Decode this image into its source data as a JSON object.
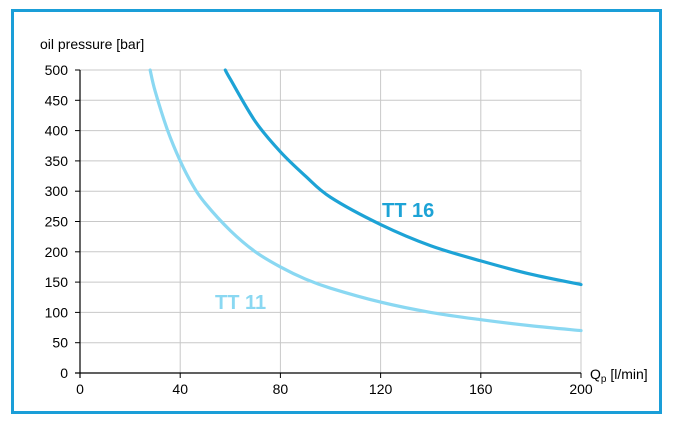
{
  "colors": {
    "frame": "#1a9ed8",
    "grid": "#c8c8c8",
    "axis": "#000000",
    "text": "#000000"
  },
  "chart_data": {
    "type": "line",
    "title": "",
    "ylabel": "oil pressure [bar]",
    "xlabel_main": "Q",
    "xlabel_sub": "p",
    "xlabel_unit": " [l/min]",
    "xlim": [
      0,
      200
    ],
    "ylim": [
      0,
      500
    ],
    "xticks": [
      0,
      40,
      80,
      120,
      160,
      200
    ],
    "yticks": [
      0,
      50,
      100,
      150,
      200,
      250,
      300,
      350,
      400,
      450,
      500
    ],
    "grid": true,
    "series": [
      {
        "name": "TT 11",
        "color": "#8ad8f2",
        "x": [
          28,
          30,
          35,
          40,
          45,
          50,
          60,
          70,
          80,
          90,
          100,
          120,
          140,
          160,
          180,
          200
        ],
        "y": [
          500,
          465,
          400,
          350,
          310,
          280,
          235,
          200,
          175,
          155,
          140,
          117,
          100,
          88,
          78,
          70
        ]
      },
      {
        "name": "TT 16",
        "color": "#1da3d6",
        "x": [
          58,
          60,
          70,
          80,
          90,
          100,
          120,
          140,
          160,
          180,
          200
        ],
        "y": [
          500,
          485,
          415,
          365,
          325,
          290,
          245,
          210,
          185,
          163,
          146
        ]
      }
    ]
  }
}
